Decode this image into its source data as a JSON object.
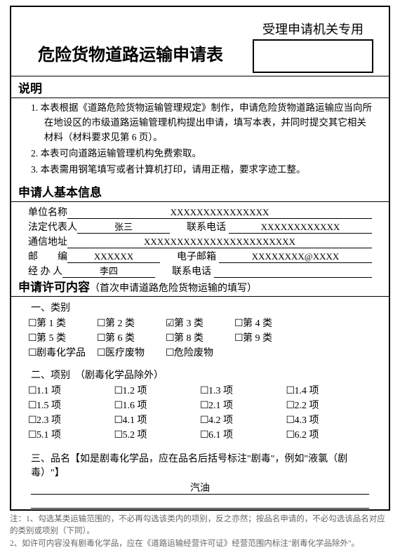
{
  "stamp_label": "受理申请机关专用",
  "title": "危险货物道路运输申请表",
  "instructions": {
    "heading": "说明",
    "items": [
      "1. 本表根据《道路危险货物运输管理规定》制作，申请危险货物道路运输应当向所在地设区的市级道路运输管理机构提出申请，填写本表，并同时提交其它相关材料（材料要求见第 6 页）。",
      "2. 本表可向道路运输管理机构免费索取。",
      "3. 本表需用钢笔填写或者计算机打印，请用正楷，要求字迹工整。"
    ]
  },
  "basic": {
    "heading": "申请人基本信息",
    "unit_label": "单位名称",
    "unit_value": "XXXXXXXXXXXXXXX",
    "legal_label": "法定代表人",
    "legal_value": "张三",
    "legal_phone_label": "联系电话",
    "legal_phone_value": "XXXXXXXXXXXX",
    "addr_label": "通信地址",
    "addr_value": "XXXXXXXXXXXXXXXXXXXXXXX",
    "zip_label": "邮　　编",
    "zip_value": "XXXXXX",
    "email_label": "电子邮箱",
    "email_value": "XXXXXXXX@XXXX",
    "agent_label": "经 办 人",
    "agent_value": "李四",
    "agent_phone_label": "联系电话",
    "agent_phone_value": ""
  },
  "permit": {
    "heading": "申请许可内容",
    "heading_note": "（首次申请道路危险货物运输的填写）",
    "cat_title": "一、类别",
    "categories": [
      {
        "label": "第 1 类",
        "checked": false
      },
      {
        "label": "第 2 类",
        "checked": false
      },
      {
        "label": "第 3 类",
        "checked": true
      },
      {
        "label": "第 4 类",
        "checked": false
      },
      {
        "label": "",
        "checked": null
      },
      {
        "label": "第 5 类",
        "checked": false
      },
      {
        "label": "第 6 类",
        "checked": false
      },
      {
        "label": "第 8 类",
        "checked": false
      },
      {
        "label": "第 9 类",
        "checked": false
      },
      {
        "label": "",
        "checked": null
      },
      {
        "label": "剧毒化学品",
        "checked": false
      },
      {
        "label": "医疗废物",
        "checked": false
      },
      {
        "label": "危险废物",
        "checked": false
      },
      {
        "label": "",
        "checked": null
      },
      {
        "label": "",
        "checked": null
      }
    ],
    "item_title": "二、项别　（剧毒化学品除外）",
    "items": [
      {
        "label": "1.1 项",
        "checked": false
      },
      {
        "label": "1.2 项",
        "checked": false
      },
      {
        "label": "1.3 项",
        "checked": false
      },
      {
        "label": "1.4 项",
        "checked": false
      },
      {
        "label": "1.5 项",
        "checked": false
      },
      {
        "label": "1.6 项",
        "checked": false
      },
      {
        "label": "2.1 项",
        "checked": false
      },
      {
        "label": "2.2 项",
        "checked": false
      },
      {
        "label": "2.3 项",
        "checked": false
      },
      {
        "label": "4.1 项",
        "checked": false
      },
      {
        "label": "4.2 项",
        "checked": false
      },
      {
        "label": "4.3 项",
        "checked": false
      },
      {
        "label": "5.1 项",
        "checked": false
      },
      {
        "label": "5.2 项",
        "checked": false
      },
      {
        "label": "6.1 项",
        "checked": false
      },
      {
        "label": "6.2 项",
        "checked": false
      }
    ],
    "pinming_title": "三、品名【如是剧毒化学品，应在品名后括号标注\"剧毒\"，例如\"液氯（剧毒）\"】",
    "pinming_value": "汽油"
  },
  "footnotes": [
    "注：1、勾选某类运输范围的，不必再勾选该类内的项别，反之亦然；按品名申请的，不必勾选该品名对应的类别或项别（下同）。",
    "2、如许可内容没有剧毒化学品，应在《道路运输经营许可证》经营范围内标注\"剧毒化学品除外\"。"
  ],
  "glyphs": {
    "unchecked": "☐",
    "checked": "☑"
  }
}
